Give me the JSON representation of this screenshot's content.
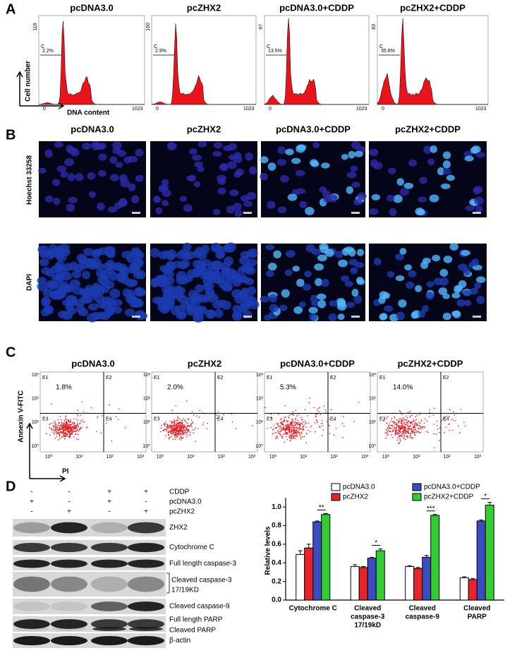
{
  "panels": {
    "A": {
      "label": "A",
      "titles": [
        "pcDNA3.0",
        "pcZHX2",
        "pcDNA3.0+CDDP",
        "pcZHX2+CDDP"
      ],
      "ymax": [
        110,
        150,
        97,
        83
      ],
      "gate": "C",
      "percent": [
        "2.2%",
        "2.9%",
        "13.5%",
        "35.6%"
      ],
      "x_start": 0,
      "x_end": 1023,
      "ylabel": "Cell number",
      "xlabel": "DNA content"
    },
    "B": {
      "label": "B",
      "titles": [
        "pcDNA3.0",
        "pcZHX2",
        "pcDNA3.0+CDDP",
        "pcZHX2+CDDP"
      ],
      "rows": [
        "Hoechst 33258",
        "DAPI"
      ]
    },
    "C": {
      "label": "C",
      "titles": [
        "pcDNA3.0",
        "pcZHX2",
        "pcDNA3.0+CDDP",
        "pcZHX2+CDDP"
      ],
      "quadrants": [
        "E1",
        "E2",
        "E3",
        "E4"
      ],
      "percent": [
        "1.8%",
        "2.0%",
        "5.3%",
        "14.0%"
      ],
      "ticks": [
        "10⁰",
        "10¹",
        "10²",
        "10³"
      ],
      "ylabel": "Annexin V-FITC",
      "xlabel": "PI"
    },
    "D": {
      "label": "D",
      "treatments": [
        {
          "name": "CDDP",
          "signs": [
            "-",
            "-",
            "+",
            "+"
          ]
        },
        {
          "name": "pcDNA3.0",
          "signs": [
            "+",
            "-",
            "+",
            "-"
          ]
        },
        {
          "name": "pcZHX2",
          "signs": [
            "-",
            "+",
            "-",
            "+"
          ]
        }
      ],
      "bands": [
        [
          "ZHX2"
        ],
        [
          "Cytochrome C"
        ],
        [
          "Full length caspase-3"
        ],
        [
          "Cleaved caspase-3",
          "17/19KD"
        ],
        [
          "Cleaved caspase-9"
        ],
        [
          "Full length PARP",
          "Cleaved PARP"
        ],
        [
          "β-actin"
        ]
      ]
    }
  },
  "chart_data": {
    "type": "bar",
    "ylabel": "Relative levels",
    "categories": [
      [
        "Cytochrome C"
      ],
      [
        "Cleaved",
        "caspase-3",
        "17/19kD"
      ],
      [
        "Cleaved",
        "caspase-9"
      ],
      [
        "Cleaved",
        "PARP"
      ]
    ],
    "series": [
      {
        "name": "pcDNA3.0",
        "color": "#ffffff",
        "values": [
          0.49,
          0.36,
          0.36,
          0.24
        ],
        "errors": [
          0.04,
          0.02,
          0.01,
          0.01
        ]
      },
      {
        "name": "pcZHX2",
        "color": "#e8242b",
        "values": [
          0.56,
          0.35,
          0.34,
          0.22
        ],
        "errors": [
          0.04,
          0.01,
          0.01,
          0.01
        ]
      },
      {
        "name": "pcDNA3.0+CDDP",
        "color": "#3b4cc0",
        "values": [
          0.84,
          0.45,
          0.46,
          0.85
        ],
        "errors": [
          0.01,
          0.01,
          0.02,
          0.01
        ]
      },
      {
        "name": "pcZHX2+CDDP",
        "color": "#33cc33",
        "values": [
          0.92,
          0.53,
          0.91,
          1.02
        ],
        "errors": [
          0.01,
          0.02,
          0.01,
          0.03
        ]
      }
    ],
    "annotations": [
      "**",
      "*",
      "***",
      "*"
    ],
    "ylim": [
      0,
      1.1
    ],
    "yticks": [
      {
        "value": 0,
        "label": "0.0"
      },
      0.2,
      0.4,
      0.6,
      0.8,
      {
        "value": 1,
        "label": "1.0"
      }
    ]
  }
}
